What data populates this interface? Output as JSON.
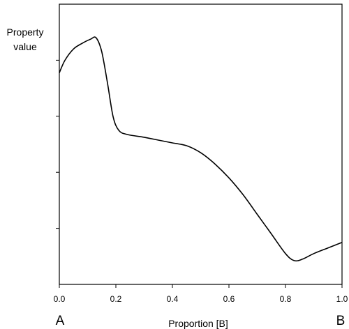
{
  "chart_data": {
    "type": "line",
    "title": "",
    "ylabel_lines": [
      "Property",
      "value"
    ],
    "xlabel": "Proportion [B]",
    "x_end_labels": [
      "A",
      "B"
    ],
    "xlim": [
      0,
      1
    ],
    "xticks": [
      "0.0",
      "0.2",
      "0.4",
      "0.6",
      "0.8",
      "1.0"
    ],
    "ylim": [
      0,
      1
    ],
    "yticks": [
      0.2,
      0.4,
      0.6,
      0.8
    ],
    "ytick_labels_shown": false,
    "grid": false,
    "series": [
      {
        "x": [
          0.0,
          0.02,
          0.05,
          0.08,
          0.11,
          0.13,
          0.15,
          0.17,
          0.19,
          0.21,
          0.24,
          0.3,
          0.35,
          0.4,
          0.45,
          0.5,
          0.55,
          0.6,
          0.65,
          0.7,
          0.75,
          0.8,
          0.83,
          0.86,
          0.9,
          0.95,
          1.0
        ],
        "y": [
          0.755,
          0.8,
          0.84,
          0.86,
          0.875,
          0.88,
          0.83,
          0.72,
          0.6,
          0.55,
          0.535,
          0.525,
          0.515,
          0.505,
          0.495,
          0.47,
          0.43,
          0.38,
          0.32,
          0.25,
          0.18,
          0.11,
          0.085,
          0.09,
          0.11,
          0.13,
          0.15
        ]
      }
    ]
  }
}
